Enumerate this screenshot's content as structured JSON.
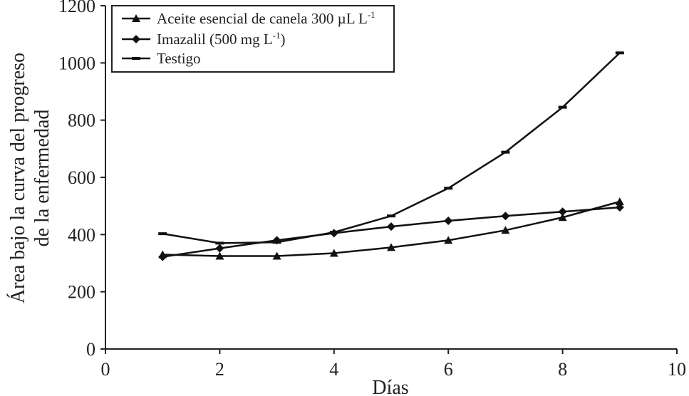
{
  "chart_data": {
    "type": "line",
    "title": "",
    "xlabel": "Días",
    "ylabel_line1": "Área bajo la curva del progreso",
    "ylabel_line2": "de la enfermedad",
    "xlim": [
      0,
      10
    ],
    "ylim": [
      0,
      1200
    ],
    "xticks": [
      0,
      2,
      4,
      6,
      8,
      10
    ],
    "yticks": [
      0,
      200,
      400,
      600,
      800,
      1000,
      1200
    ],
    "grid": false,
    "legend_position": "top-left",
    "x": [
      1,
      2,
      3,
      4,
      5,
      6,
      7,
      8,
      9
    ],
    "series": [
      {
        "name": "Aceite esencial de canela 300 µL L",
        "name_sup": "-1",
        "marker": "triangle",
        "values": [
          330,
          325,
          325,
          335,
          355,
          380,
          415,
          460,
          515
        ]
      },
      {
        "name": "Imazalil (500 mg L",
        "name_sup": "-1",
        "name_suffix": ")",
        "marker": "diamond",
        "values": [
          322,
          352,
          380,
          405,
          428,
          448,
          465,
          480,
          495
        ]
      },
      {
        "name": "Testigo",
        "marker": "dash",
        "values": [
          403,
          370,
          373,
          408,
          465,
          562,
          688,
          845,
          1035
        ]
      }
    ]
  }
}
